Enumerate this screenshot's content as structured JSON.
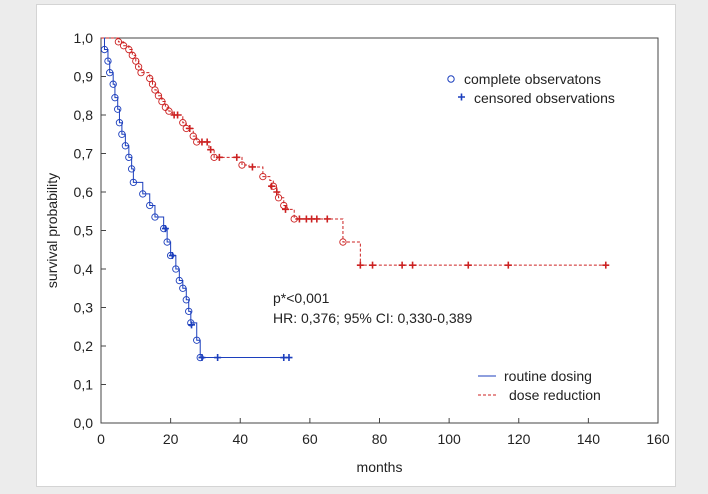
{
  "chart_data": {
    "type": "line",
    "subtype": "kaplan-meier",
    "xlabel": "months",
    "ylabel": "survival probability",
    "xlim": [
      0,
      160
    ],
    "ylim": [
      0,
      1
    ],
    "x_ticks": [
      0,
      20,
      40,
      60,
      80,
      100,
      120,
      140,
      160
    ],
    "y_ticks": [
      0.0,
      0.1,
      0.2,
      0.3,
      0.4,
      0.5,
      0.6,
      0.7,
      0.8,
      0.9,
      1.0
    ],
    "x_tick_labels": [
      "0",
      "20",
      "40",
      "60",
      "80",
      "100",
      "120",
      "140",
      "160"
    ],
    "y_tick_labels": [
      "0,0",
      "0,1",
      "0,2",
      "0,3",
      "0,4",
      "0,5",
      "0,6",
      "0,7",
      "0,8",
      "0,9",
      "1,0"
    ],
    "grid": false,
    "annotations": [
      "p*<0,001",
      "HR: 0,376; 95% CI: 0,330-0,389"
    ],
    "marker_legend": {
      "complete_label": "complete observatons",
      "censored_label": "censored observations",
      "complete_color": "#1c3fbd",
      "censored_color": "#1c3fbd"
    },
    "series": [
      {
        "name": "routine dosing",
        "color": "#1c3fbd",
        "dashed": false,
        "steps": [
          [
            0,
            1.0
          ],
          [
            1,
            0.97
          ],
          [
            2,
            0.94
          ],
          [
            2.5,
            0.91
          ],
          [
            3.5,
            0.88
          ],
          [
            4,
            0.845
          ],
          [
            4.8,
            0.815
          ],
          [
            5.3,
            0.78
          ],
          [
            6,
            0.75
          ],
          [
            7,
            0.72
          ],
          [
            8,
            0.69
          ],
          [
            8.8,
            0.66
          ],
          [
            9.3,
            0.625
          ],
          [
            12,
            0.595
          ],
          [
            14,
            0.565
          ],
          [
            15.5,
            0.535
          ],
          [
            18,
            0.505
          ],
          [
            19,
            0.47
          ],
          [
            20,
            0.435
          ],
          [
            21.5,
            0.4
          ],
          [
            22.5,
            0.37
          ],
          [
            23.5,
            0.35
          ],
          [
            24.5,
            0.32
          ],
          [
            25.2,
            0.29
          ],
          [
            25.8,
            0.26
          ],
          [
            27.5,
            0.215
          ],
          [
            28.5,
            0.17
          ],
          [
            54,
            0.17
          ]
        ],
        "complete": [
          [
            1,
            0.97
          ],
          [
            2,
            0.94
          ],
          [
            2.5,
            0.91
          ],
          [
            3.5,
            0.88
          ],
          [
            4,
            0.845
          ],
          [
            4.8,
            0.815
          ],
          [
            5.3,
            0.78
          ],
          [
            6,
            0.75
          ],
          [
            7,
            0.72
          ],
          [
            8,
            0.69
          ],
          [
            8.8,
            0.66
          ],
          [
            9.3,
            0.625
          ],
          [
            12,
            0.595
          ],
          [
            14,
            0.565
          ],
          [
            15.5,
            0.535
          ],
          [
            18,
            0.505
          ],
          [
            19,
            0.47
          ],
          [
            20,
            0.435
          ],
          [
            21.5,
            0.4
          ],
          [
            22.5,
            0.37
          ],
          [
            23.5,
            0.35
          ],
          [
            24.5,
            0.32
          ],
          [
            25.2,
            0.29
          ],
          [
            25.8,
            0.26
          ],
          [
            27.5,
            0.215
          ],
          [
            28.5,
            0.17
          ]
        ],
        "censored": [
          [
            18.5,
            0.505
          ],
          [
            20.5,
            0.435
          ],
          [
            26,
            0.255
          ],
          [
            29,
            0.17
          ],
          [
            33.5,
            0.17
          ],
          [
            52.5,
            0.17
          ],
          [
            54,
            0.17
          ]
        ]
      },
      {
        "name": "dose reduction",
        "color": "#cc2222",
        "dashed": true,
        "steps": [
          [
            0,
            1.0
          ],
          [
            5,
            0.99
          ],
          [
            6.5,
            0.98
          ],
          [
            8,
            0.97
          ],
          [
            9,
            0.955
          ],
          [
            10,
            0.94
          ],
          [
            10.8,
            0.925
          ],
          [
            11.5,
            0.91
          ],
          [
            14,
            0.895
          ],
          [
            14.8,
            0.88
          ],
          [
            15.5,
            0.865
          ],
          [
            16.5,
            0.85
          ],
          [
            17.5,
            0.835
          ],
          [
            18.5,
            0.82
          ],
          [
            19.5,
            0.81
          ],
          [
            20.5,
            0.8
          ],
          [
            23.5,
            0.78
          ],
          [
            24.5,
            0.765
          ],
          [
            26.5,
            0.745
          ],
          [
            27.5,
            0.73
          ],
          [
            31,
            0.71
          ],
          [
            32.5,
            0.69
          ],
          [
            38.5,
            0.69
          ],
          [
            40.5,
            0.67
          ],
          [
            42.5,
            0.665
          ],
          [
            46.5,
            0.64
          ],
          [
            48.5,
            0.63
          ],
          [
            49.5,
            0.615
          ],
          [
            50.5,
            0.6
          ],
          [
            51,
            0.585
          ],
          [
            52.5,
            0.565
          ],
          [
            53.5,
            0.555
          ],
          [
            55.5,
            0.53
          ],
          [
            65,
            0.53
          ],
          [
            69.5,
            0.47
          ],
          [
            74.5,
            0.41
          ],
          [
            145,
            0.41
          ]
        ],
        "complete": [
          [
            5,
            0.99
          ],
          [
            6.5,
            0.98
          ],
          [
            8,
            0.97
          ],
          [
            9,
            0.955
          ],
          [
            10,
            0.94
          ],
          [
            10.8,
            0.925
          ],
          [
            11.5,
            0.91
          ],
          [
            14,
            0.895
          ],
          [
            14.8,
            0.88
          ],
          [
            15.5,
            0.865
          ],
          [
            16.5,
            0.85
          ],
          [
            17.5,
            0.835
          ],
          [
            18.5,
            0.82
          ],
          [
            19.5,
            0.81
          ],
          [
            23.5,
            0.78
          ],
          [
            24.5,
            0.765
          ],
          [
            26.5,
            0.745
          ],
          [
            27.5,
            0.73
          ],
          [
            32.5,
            0.69
          ],
          [
            40.5,
            0.67
          ],
          [
            46.5,
            0.64
          ],
          [
            49.5,
            0.615
          ],
          [
            51,
            0.585
          ],
          [
            52.5,
            0.565
          ],
          [
            55.5,
            0.53
          ],
          [
            69.5,
            0.47
          ]
        ],
        "censored": [
          [
            21,
            0.8
          ],
          [
            22,
            0.8
          ],
          [
            25.5,
            0.765
          ],
          [
            29,
            0.73
          ],
          [
            30.5,
            0.73
          ],
          [
            31.5,
            0.71
          ],
          [
            34,
            0.69
          ],
          [
            39,
            0.69
          ],
          [
            43.5,
            0.665
          ],
          [
            49,
            0.615
          ],
          [
            50.5,
            0.6
          ],
          [
            53,
            0.555
          ],
          [
            57,
            0.53
          ],
          [
            59,
            0.53
          ],
          [
            60.5,
            0.53
          ],
          [
            62,
            0.53
          ],
          [
            65,
            0.53
          ],
          [
            74.5,
            0.41
          ],
          [
            78,
            0.41
          ],
          [
            86.5,
            0.41
          ],
          [
            89.5,
            0.41
          ],
          [
            105.5,
            0.41
          ],
          [
            117,
            0.41
          ],
          [
            145,
            0.41
          ]
        ]
      }
    ]
  }
}
